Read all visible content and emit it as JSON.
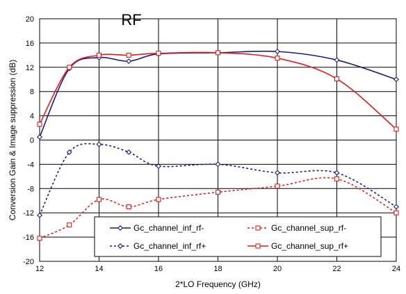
{
  "chart_data": {
    "type": "line",
    "title": "RF",
    "xlabel": "2*LO Frequency (GHz)",
    "ylabel": "Conversion Gain & Image suppression (dB)",
    "xlim": [
      12,
      24
    ],
    "ylim": [
      -20,
      20
    ],
    "xticks": [
      12,
      14,
      16,
      18,
      20,
      22,
      24
    ],
    "yticks": [
      -20,
      -16,
      -12,
      -8,
      -4,
      0,
      4,
      8,
      12,
      16,
      20
    ],
    "grid": true,
    "legend_position": "lower-center",
    "series": [
      {
        "name": "Gc_channel_inf_rf-",
        "color": "#1a1a7a",
        "line_style": "solid",
        "marker": "diamond",
        "x": [
          12,
          13,
          14,
          15,
          16,
          18,
          20,
          22,
          24
        ],
        "y": [
          0.5,
          11.8,
          13.6,
          13.0,
          14.2,
          14.4,
          14.6,
          13.2,
          10.0
        ]
      },
      {
        "name": "Gc_channel_sup_rf-",
        "color": "#e01b1b",
        "line_style": "dashed",
        "marker": "square",
        "x": [
          12,
          13,
          14,
          15,
          16,
          18,
          20,
          22,
          24
        ],
        "y": [
          -16.2,
          -14.0,
          -9.8,
          -11.0,
          -9.8,
          -8.6,
          -7.6,
          -6.4,
          -12.0
        ]
      },
      {
        "name": "Gc_channel_inf_rf+",
        "color": "#1a1a7a",
        "line_style": "dashed",
        "marker": "diamond",
        "x": [
          12,
          13,
          14,
          15,
          16,
          18,
          20,
          22,
          24
        ],
        "y": [
          -12.4,
          -2.0,
          -0.7,
          -2.0,
          -4.3,
          -4.0,
          -5.4,
          -5.4,
          -11.0
        ]
      },
      {
        "name": "Gc_channel_sup_rf+",
        "color": "#e01b1b",
        "line_style": "solid",
        "marker": "square",
        "x": [
          12,
          13,
          14,
          15,
          16,
          18,
          20,
          22,
          24
        ],
        "y": [
          2.6,
          12.0,
          14.0,
          14.0,
          14.3,
          14.4,
          13.5,
          10.1,
          1.8
        ]
      }
    ]
  }
}
